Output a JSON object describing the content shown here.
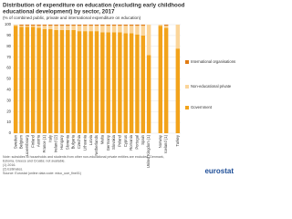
{
  "chart_data": {
    "type": "stacked_bar",
    "title": [
      "Distribution of expenditure on education (excluding early childhood",
      "educational development) by sector, 2017"
    ],
    "subtitle": "(% of combined public, private and international expenditure on education)",
    "categories": [
      "Sweden",
      "Belgium",
      "Luxembourg",
      "Finland",
      "Austria",
      "France (1)",
      "Italy",
      "Ireland (2)",
      "Hungary",
      "Slovenia",
      "Bulgaria",
      "Czechia",
      "Lithuania",
      "Latvia",
      "Netherlands",
      "Malta",
      "Germany",
      "Slovakia",
      "Poland",
      "Cyprus",
      "Romania",
      "Portugal",
      "Spain",
      "United Kingdom (1)",
      "Norway",
      "Iceland (1)",
      "Turkey"
    ],
    "series": [
      {
        "name": "Government",
        "color": "#f2a31b",
        "values": [
          99,
          98,
          98,
          98,
          97,
          96,
          96,
          95,
          95,
          95,
          95,
          94,
          94,
          94,
          94,
          93,
          93,
          93,
          93,
          92,
          92,
          91,
          90,
          72,
          99,
          97,
          78
        ]
      },
      {
        "name": "Non-educational private",
        "color": "#fbd59a",
        "values": [
          1,
          1,
          1,
          1,
          2,
          3,
          3,
          4,
          4,
          4,
          4,
          5,
          5,
          5,
          5,
          6,
          6,
          6,
          6,
          7,
          7,
          8,
          9,
          28,
          1,
          2,
          22
        ]
      },
      {
        "name": "International organisations",
        "color": "#e07b14",
        "values": [
          0,
          1,
          1,
          1,
          1,
          1,
          1,
          1,
          1,
          1,
          1,
          1,
          1,
          1,
          1,
          1,
          1,
          1,
          1,
          1,
          1,
          1,
          1,
          0,
          0,
          1,
          0
        ]
      }
    ],
    "ylim": [
      0,
      100
    ],
    "yticks": [
      0,
      10,
      20,
      30,
      40,
      50,
      60,
      70,
      80,
      90,
      100
    ],
    "grid": true,
    "notes": [
      "Note: subsidies to households and students from other non-educational private entities are excluded. Denmark,",
      "Estonia, Greece and Croatia: not available.",
      "(1) 2016.",
      "(2) Estimates.",
      "Source: Eurostat (online data code: educ_uoe_fine01)"
    ],
    "logo": "eurostat"
  }
}
